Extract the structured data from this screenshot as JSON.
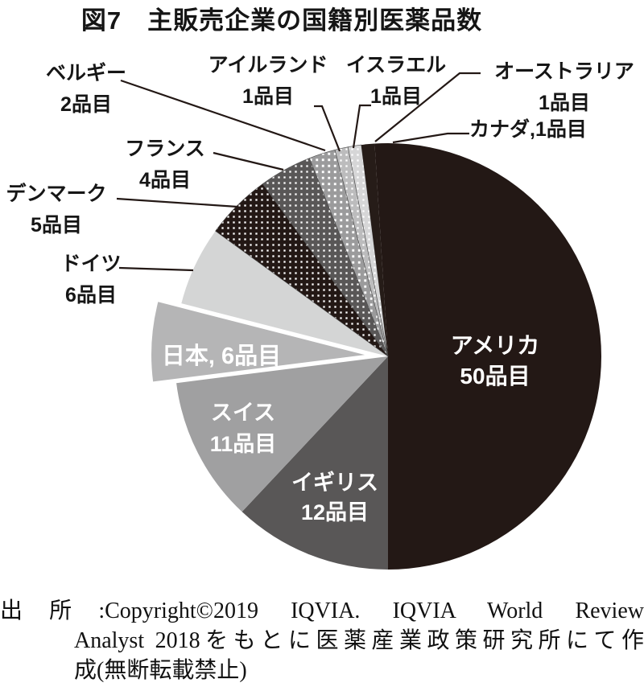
{
  "title": "図7　主販売企業の国籍別医薬品数",
  "chart_data": {
    "type": "pie",
    "title": "図7　主販売企業の国籍別医薬品数",
    "unit": "品目",
    "direction": "clockwise",
    "start_angle_deg": 0,
    "total": 100,
    "slices": [
      {
        "id": "america",
        "country": "アメリカ",
        "value": 50,
        "label_lines": [
          "アメリカ",
          "50品目"
        ],
        "label_placement": "inside",
        "color": "#231815",
        "pattern": null,
        "explode": 0
      },
      {
        "id": "uk",
        "country": "イギリス",
        "value": 12,
        "label_lines": [
          "イギリス",
          "12品目"
        ],
        "label_placement": "inside",
        "color": "#595757",
        "pattern": null,
        "explode": 0
      },
      {
        "id": "swiss",
        "country": "スイス",
        "value": 11,
        "label_lines": [
          "スイス",
          "11品目"
        ],
        "label_placement": "inside",
        "color": "#a0a0a1",
        "pattern": null,
        "explode": 0
      },
      {
        "id": "japan",
        "country": "日本",
        "value": 6,
        "label_lines": [
          "日本, 6品目"
        ],
        "label_placement": "inside",
        "color": "#b5b5b6",
        "pattern": null,
        "explode": 29
      },
      {
        "id": "germany",
        "country": "ドイツ",
        "value": 6,
        "label_lines": [
          "ドイツ",
          "6品目"
        ],
        "label_placement": "outside",
        "color": "#d4d5d5",
        "pattern": null,
        "explode": 0
      },
      {
        "id": "denmark",
        "country": "デンマーク",
        "value": 5,
        "label_lines": [
          "デンマーク",
          "5品目"
        ],
        "label_placement": "outside",
        "color": "#231815",
        "pattern": "white-dots",
        "explode": 0
      },
      {
        "id": "france",
        "country": "フランス",
        "value": 4,
        "label_lines": [
          "フランス",
          "4品目"
        ],
        "label_placement": "outside",
        "color": "#595757",
        "pattern": "white-dots",
        "explode": 0
      },
      {
        "id": "belgium",
        "country": "ベルギー",
        "value": 2,
        "label_lines": [
          "ベルギー",
          "2品目"
        ],
        "label_placement": "outside",
        "color": "#9b9b9c",
        "pattern": "white-dots-large",
        "explode": 0
      },
      {
        "id": "ireland",
        "country": "アイルランド",
        "value": 1,
        "label_lines": [
          "アイルランド",
          "1品目"
        ],
        "label_placement": "outside",
        "color": "#bcbcbd",
        "pattern": "white-dots",
        "explode": 0
      },
      {
        "id": "israel",
        "country": "イスラエル",
        "value": 1,
        "label_lines": [
          "イスラエル",
          "1品目"
        ],
        "label_placement": "outside",
        "color": "#d6d6d7",
        "pattern": "white-dots",
        "explode": 0
      },
      {
        "id": "australia",
        "country": "オーストラリア",
        "value": 1,
        "label_lines": [
          "オーストラリア",
          "1品目"
        ],
        "label_placement": "outside",
        "color": "#261c18",
        "pattern": null,
        "explode": 0
      },
      {
        "id": "canada",
        "country": "カナダ",
        "value": 1,
        "label_lines": [
          "カナダ,1品目"
        ],
        "label_placement": "outside",
        "color": "#231815",
        "pattern": null,
        "explode": 0
      }
    ]
  },
  "source": {
    "line1": "出所:Copyright©2019 IQVIA. IQVIA World Review",
    "line2": "Analyst 2018をもとに医薬産業政策研究所にて作",
    "line3": "成(無断転載禁止)"
  }
}
